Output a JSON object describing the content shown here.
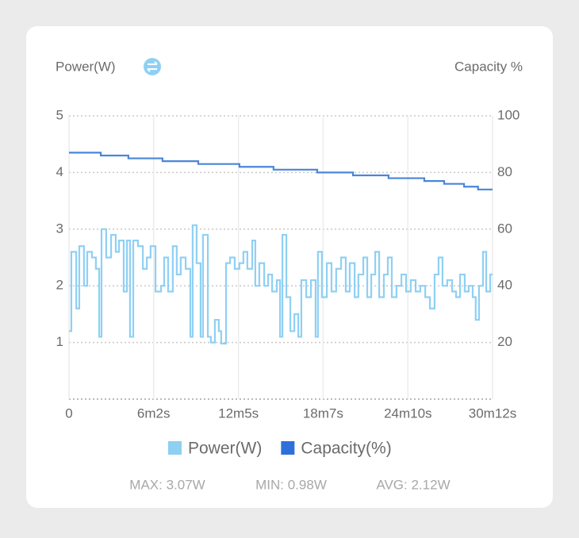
{
  "chart_data": {
    "type": "line",
    "title": "Power(W)",
    "y2_title": "Capacity %",
    "step": true,
    "grid": true,
    "xlim": [
      0,
      1812
    ],
    "xticks": [
      0,
      {
        "value": 362,
        "label": "6m2s"
      },
      {
        "value": 725,
        "label": "12m5s"
      },
      {
        "value": 1087,
        "label": "18m7s"
      },
      {
        "value": 1450,
        "label": "24m10s"
      },
      {
        "value": 1812,
        "label": "30m12s"
      }
    ],
    "ylim": [
      0,
      5
    ],
    "yticks": [
      1,
      2,
      3,
      4,
      5
    ],
    "y2lim": [
      0,
      100
    ],
    "y2ticks": [
      20,
      40,
      60,
      80,
      100
    ],
    "series": [
      {
        "name": "Power(W)",
        "color": "#8fd0f3",
        "legend_color": "#8ecff2",
        "x": [
          0,
          10,
          31,
          44,
          64,
          78,
          98,
          115,
          129,
          139,
          159,
          180,
          200,
          214,
          234,
          248,
          261,
          275,
          295,
          316,
          333,
          349,
          370,
          394,
          407,
          424,
          444,
          461,
          478,
          499,
          519,
          529,
          546,
          563,
          573,
          594,
          607,
          624,
          641,
          651,
          672,
          689,
          709,
          729,
          746,
          763,
          784,
          797,
          814,
          835,
          852,
          869,
          889,
          903,
          913,
          930,
          947,
          964,
          981,
          994,
          1015,
          1035,
          1055,
          1065,
          1082,
          1103,
          1123,
          1143,
          1164,
          1184,
          1201,
          1222,
          1238,
          1259,
          1276,
          1293,
          1310,
          1327,
          1347,
          1364,
          1381,
          1401,
          1422,
          1442,
          1462,
          1483,
          1503,
          1524,
          1544,
          1564,
          1581,
          1598,
          1618,
          1639,
          1656,
          1673,
          1693,
          1710,
          1727,
          1740,
          1754,
          1771,
          1785,
          1802,
          1812
        ],
        "values": [
          1.2,
          2.6,
          1.6,
          2.7,
          2.0,
          2.6,
          2.5,
          2.3,
          1.1,
          3.0,
          2.5,
          2.9,
          2.6,
          2.8,
          1.9,
          2.8,
          1.1,
          2.8,
          2.7,
          2.3,
          2.5,
          2.7,
          1.9,
          2.0,
          2.5,
          1.9,
          2.7,
          2.2,
          2.5,
          2.3,
          1.1,
          3.07,
          2.4,
          1.1,
          2.9,
          1.1,
          1.0,
          1.4,
          1.2,
          0.98,
          2.4,
          2.5,
          2.3,
          2.4,
          2.6,
          2.3,
          2.8,
          2.0,
          2.4,
          2.0,
          2.2,
          1.9,
          2.1,
          1.1,
          2.9,
          1.8,
          1.2,
          1.5,
          1.1,
          2.1,
          1.8,
          2.1,
          1.1,
          2.6,
          1.8,
          2.4,
          1.9,
          2.3,
          2.5,
          1.9,
          2.4,
          1.8,
          2.2,
          2.5,
          1.8,
          2.2,
          2.6,
          1.8,
          2.2,
          2.5,
          1.8,
          2.0,
          2.2,
          1.9,
          2.1,
          1.9,
          2.0,
          1.8,
          1.6,
          2.2,
          2.5,
          2.0,
          2.1,
          1.9,
          1.8,
          2.2,
          1.9,
          2.0,
          1.8,
          1.4,
          2.0,
          2.6,
          1.9,
          2.2,
          2.2
        ]
      },
      {
        "name": "Capacity(%)",
        "color": "#4a86d8",
        "legend_color": "#2f6fdc",
        "axis": "y2",
        "x": [
          0,
          136,
          254,
          400,
          553,
          729,
          875,
          1062,
          1215,
          1367,
          1520,
          1605,
          1690,
          1750,
          1812
        ],
        "values": [
          87,
          86,
          85,
          84,
          83,
          82,
          81,
          80,
          79,
          78,
          77,
          76,
          75,
          74,
          74
        ]
      }
    ],
    "stats": [
      "MAX: 3.07W",
      "MIN: 0.98W",
      "AVG: 2.12W"
    ]
  }
}
